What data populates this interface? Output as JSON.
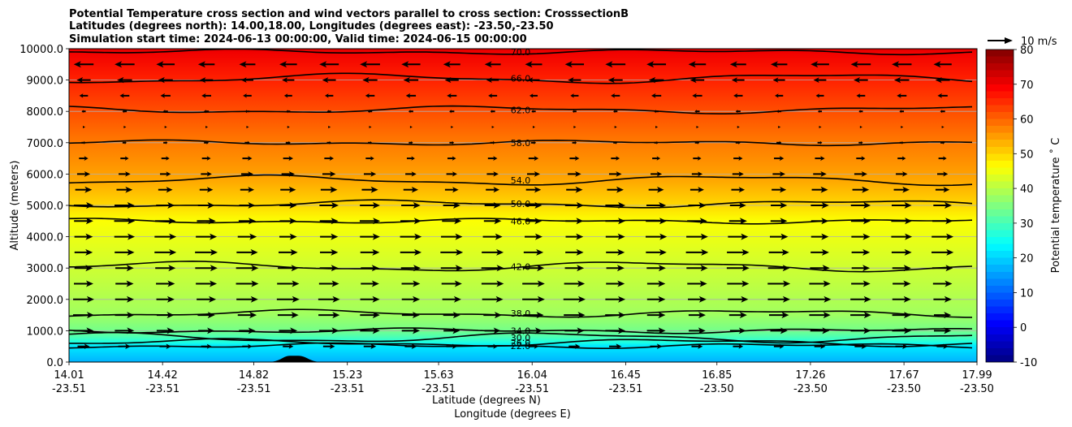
{
  "chart_data": {
    "type": "contour-cross-section",
    "title_lines": [
      "Potential Temperature cross section and wind vectors parallel to cross section: CrosssectionB",
      "Latitudes (degrees north): 14.00,18.00, Longitudes (degrees east): -23.50,-23.50",
      "Simulation start time: 2024-06-13 00:00:00, Valid time: 2024-06-15 00:00:00"
    ],
    "ylabel": "Altitude (meters)",
    "xlabel_lat": "Latitude (degrees N)",
    "xlabel_lon": "Longitude (degrees E)",
    "ylim": [
      0,
      10000
    ],
    "y_ticks": [
      "0.0",
      "1000.0",
      "2000.0",
      "3000.0",
      "4000.0",
      "5000.0",
      "6000.0",
      "7000.0",
      "8000.0",
      "9000.0",
      "10000.0"
    ],
    "x_ticks_lat": [
      "14.01",
      "14.42",
      "14.82",
      "15.23",
      "15.63",
      "16.04",
      "16.45",
      "16.85",
      "17.26",
      "17.67",
      "17.99"
    ],
    "x_ticks_lon": [
      "-23.51",
      "-23.51",
      "-23.51",
      "-23.51",
      "-23.51",
      "-23.51",
      "-23.51",
      "-23.50",
      "-23.50",
      "-23.50",
      "-23.50"
    ],
    "colorbar": {
      "label": "Potential temperature ˚ C",
      "range": [
        -10,
        80
      ],
      "ticks": [
        "-10",
        "0",
        "10",
        "20",
        "30",
        "40",
        "50",
        "60",
        "70",
        "80"
      ]
    },
    "contours": [
      {
        "level": 22,
        "label": "22.0",
        "alt": 520
      },
      {
        "level": 26,
        "label": "26.0",
        "alt": 620
      },
      {
        "level": 30,
        "label": "30.0",
        "alt": 780
      },
      {
        "level": 34,
        "label": "34.0",
        "alt": 1000
      },
      {
        "level": 38,
        "label": "38.0",
        "alt": 1550
      },
      {
        "level": 42,
        "label": "42.0",
        "alt": 3050
      },
      {
        "level": 46,
        "label": "46.0",
        "alt": 4500
      },
      {
        "level": 50,
        "label": "50.0",
        "alt": 5050
      },
      {
        "level": 54,
        "label": "54.0",
        "alt": 5800
      },
      {
        "level": 58,
        "label": "58.0",
        "alt": 7000
      },
      {
        "level": 62,
        "label": "62.0",
        "alt": 8050
      },
      {
        "level": 66,
        "label": "66.0",
        "alt": 9050
      },
      {
        "level": 70,
        "label": "70.0",
        "alt": 9900
      }
    ],
    "reference_vector": {
      "label": "10 m/s"
    },
    "wind_profile_ms": [
      {
        "alt": 0,
        "u": 0
      },
      {
        "alt": 500,
        "u": 5
      },
      {
        "alt": 1000,
        "u": 8
      },
      {
        "alt": 2000,
        "u": 9
      },
      {
        "alt": 3500,
        "u": 9
      },
      {
        "alt": 5000,
        "u": 8
      },
      {
        "alt": 6500,
        "u": 4
      },
      {
        "alt": 7500,
        "u": 0
      },
      {
        "alt": 8500,
        "u": -4
      },
      {
        "alt": 9500,
        "u": -8
      },
      {
        "alt": 10000,
        "u": -7
      }
    ],
    "terrain": {
      "peak_lat": 15.0,
      "peak_alt": 200
    },
    "colors": {
      "contour": "#000000",
      "grid": "#b0b0b0"
    }
  }
}
